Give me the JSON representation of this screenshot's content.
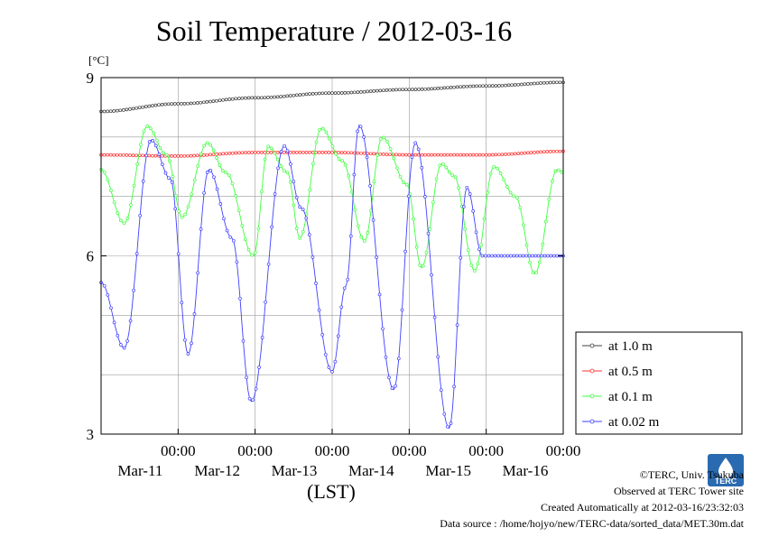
{
  "chart_data": {
    "type": "line",
    "title": "Soil Temperature / 2012-03-16",
    "ylabel": "[°C]",
    "xlabel": "(LST)",
    "ylim": [
      3,
      9
    ],
    "y_ticks": [
      "3",
      "6",
      "9"
    ],
    "x_ticks": [
      {
        "time": "00:00",
        "date": "Mar-11"
      },
      {
        "time": "00:00",
        "date": "Mar-12"
      },
      {
        "time": "00:00",
        "date": "Mar-13"
      },
      {
        "time": "00:00",
        "date": "Mar-14"
      },
      {
        "time": "00:00",
        "date": "Mar-15"
      },
      {
        "time": "00:00",
        "date": "Mar-16"
      }
    ],
    "xlim_days": [
      -1.0,
      5.0
    ],
    "grid": true,
    "legend_position": "right",
    "series": [
      {
        "name": "at 1.0 m",
        "color": "#404040",
        "x": [
          -1.0,
          0.0,
          1.0,
          2.0,
          3.0,
          4.0,
          5.0
        ],
        "y": [
          8.43,
          8.56,
          8.66,
          8.74,
          8.8,
          8.86,
          8.92
        ]
      },
      {
        "name": "at 0.5 m",
        "color": "#ff3030",
        "x": [
          -1.0,
          0.0,
          1.0,
          2.0,
          3.0,
          4.0,
          5.0
        ],
        "y": [
          7.7,
          7.68,
          7.74,
          7.74,
          7.7,
          7.7,
          7.76
        ]
      },
      {
        "name": "at 0.1 m",
        "color": "#3cff3c",
        "x": [
          -1.0,
          -0.7,
          -0.4,
          -0.15,
          0.05,
          0.38,
          0.62,
          0.98,
          1.17,
          1.42,
          1.58,
          1.86,
          2.13,
          2.42,
          2.65,
          2.97,
          3.16,
          3.42,
          3.58,
          3.85,
          4.1,
          4.38,
          4.63,
          4.92,
          5.0
        ],
        "y": [
          7.45,
          6.55,
          8.18,
          7.7,
          6.65,
          7.9,
          7.4,
          6.0,
          7.84,
          7.4,
          6.3,
          8.15,
          7.6,
          6.25,
          8.0,
          7.2,
          5.8,
          7.55,
          7.35,
          5.75,
          7.5,
          7.0,
          5.7,
          7.45,
          7.4
        ]
      },
      {
        "name": "at 0.02 m",
        "color": "#4040ff",
        "x": [
          -1.0,
          -0.7,
          -0.35,
          -0.1,
          0.13,
          0.4,
          0.7,
          0.95,
          1.38,
          1.6,
          2.0,
          2.18,
          2.35,
          2.8,
          3.08,
          3.52,
          3.75,
          3.95,
          4.3,
          4.5,
          4.7,
          4.9,
          5.0
        ],
        "y": [
          5.55,
          4.45,
          7.95,
          7.3,
          4.35,
          7.45,
          6.3,
          3.55,
          7.85,
          6.8,
          4.05,
          5.5,
          8.2,
          3.75,
          7.9,
          3.1,
          7.15,
          6.0,
          6.0,
          6.0,
          6.0,
          6.0,
          6.0
        ]
      }
    ]
  },
  "footer": {
    "copyright": "©TERC, Univ. Tsukuba",
    "site": "Observed at TERC Tower site",
    "created": "Created Automatically at 2012-03-16/23:32:03",
    "source": "Data source : /home/hojyo/new/TERC-data/sorted_data/MET.30m.dat"
  },
  "logo": {
    "text": "TERC",
    "color": "#2a6ab0"
  }
}
